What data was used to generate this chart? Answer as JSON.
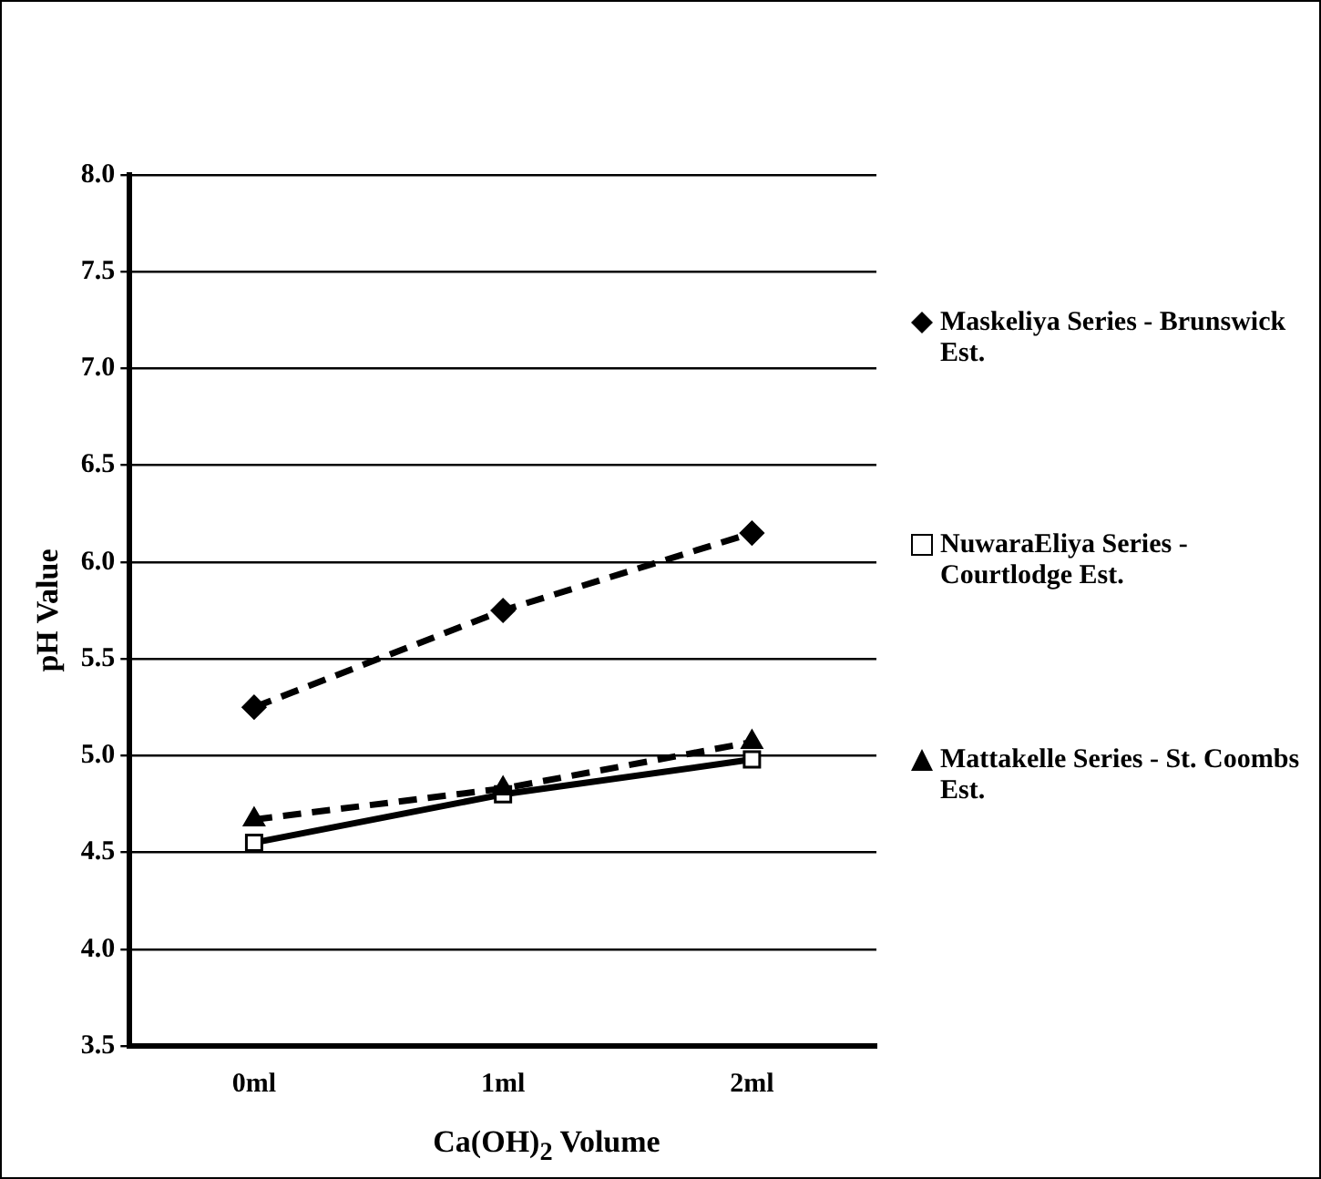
{
  "chart_data": {
    "type": "line",
    "xlabel": "Ca(OH)$_{2}$ Volume",
    "ylabel": "pH Value",
    "categories": [
      "0ml",
      "1ml",
      "2ml"
    ],
    "series": [
      {
        "name": "Maskeliya Series - Brunswick Est.",
        "color": "#000000",
        "values": [
          5.25,
          5.75,
          6.15
        ],
        "marker": "diamond",
        "line_style": "dashed"
      },
      {
        "name": "NuwaraEliya Series - Courtlodge Est.",
        "color": "#000000",
        "values": [
          4.55,
          4.8,
          4.98
        ],
        "marker": "square",
        "line_style": "solid"
      },
      {
        "name": "Mattakelle Series - St. Coombs Est.",
        "color": "#000000",
        "values": [
          4.67,
          4.83,
          5.07
        ],
        "marker": "triangle",
        "line_style": "dashed"
      }
    ],
    "ylim": [
      3.5,
      8.0
    ],
    "yticks": [
      {
        "value": 3.5,
        "label": "3.5"
      },
      {
        "value": 4,
        "label": "4.0"
      },
      {
        "value": 4.5,
        "label": "4.5"
      },
      {
        "value": 5,
        "label": "5.0"
      },
      {
        "value": 5.5,
        "label": "5.5"
      },
      {
        "value": 6,
        "label": "6.0"
      },
      {
        "value": 6.5,
        "label": "6.5"
      },
      {
        "value": 7,
        "label": "7.0"
      },
      {
        "value": 7.5,
        "label": "7.5"
      },
      {
        "value": 8,
        "label": "8.0"
      }
    ],
    "grid": "y",
    "legend": "right"
  }
}
